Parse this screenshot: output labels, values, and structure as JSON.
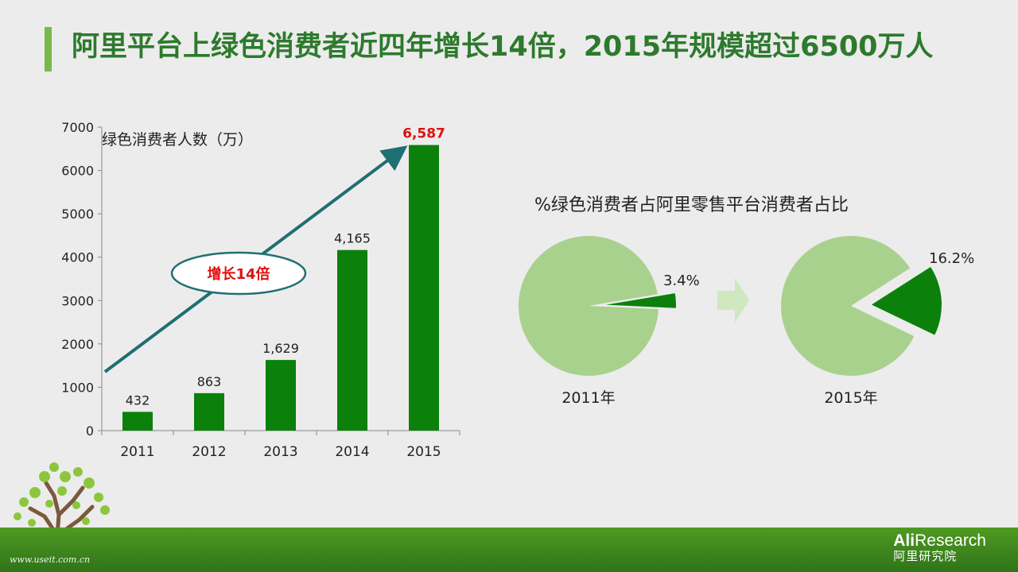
{
  "slide": {
    "title": "阿里平台上绿色消费者近四年增长14倍，2015年规模超过6500万人",
    "watermark": "www.useit.com.cn",
    "brand": {
      "line1_bold": "Ali",
      "line1_rest": "Research",
      "line2": "阿里研究院"
    },
    "colors": {
      "accent": "#78b94a",
      "title": "#2d7a2d",
      "bar": "#0b800b",
      "highlight": "#e01010",
      "arrow": "#1f6f73",
      "pie_light": "#a9d18e",
      "pie_dark": "#0b800b",
      "footer": "#3d861c"
    }
  },
  "chart_data": [
    {
      "type": "bar",
      "title": "绿色消费者人数（万）",
      "categories": [
        "2011",
        "2012",
        "2013",
        "2014",
        "2015"
      ],
      "values": [
        432,
        863,
        1629,
        4165,
        6587
      ],
      "data_labels": [
        "432",
        "863",
        "1,629",
        "4,165",
        "6,587"
      ],
      "highlight_label_index": 4,
      "ylim": [
        0,
        7000
      ],
      "yticks": [
        "0",
        "1000",
        "2000",
        "3000",
        "4000",
        "5000",
        "6000",
        "7000"
      ],
      "grid": false,
      "annotation": "增长14倍"
    },
    {
      "type": "pie",
      "title": "%绿色消费者占阿里零售平台消费者占比",
      "pies": [
        {
          "label": "2011年",
          "share": 3.4,
          "share_label": "3.4%"
        },
        {
          "label": "2015年",
          "share": 16.2,
          "share_label": "16.2%"
        }
      ]
    }
  ]
}
